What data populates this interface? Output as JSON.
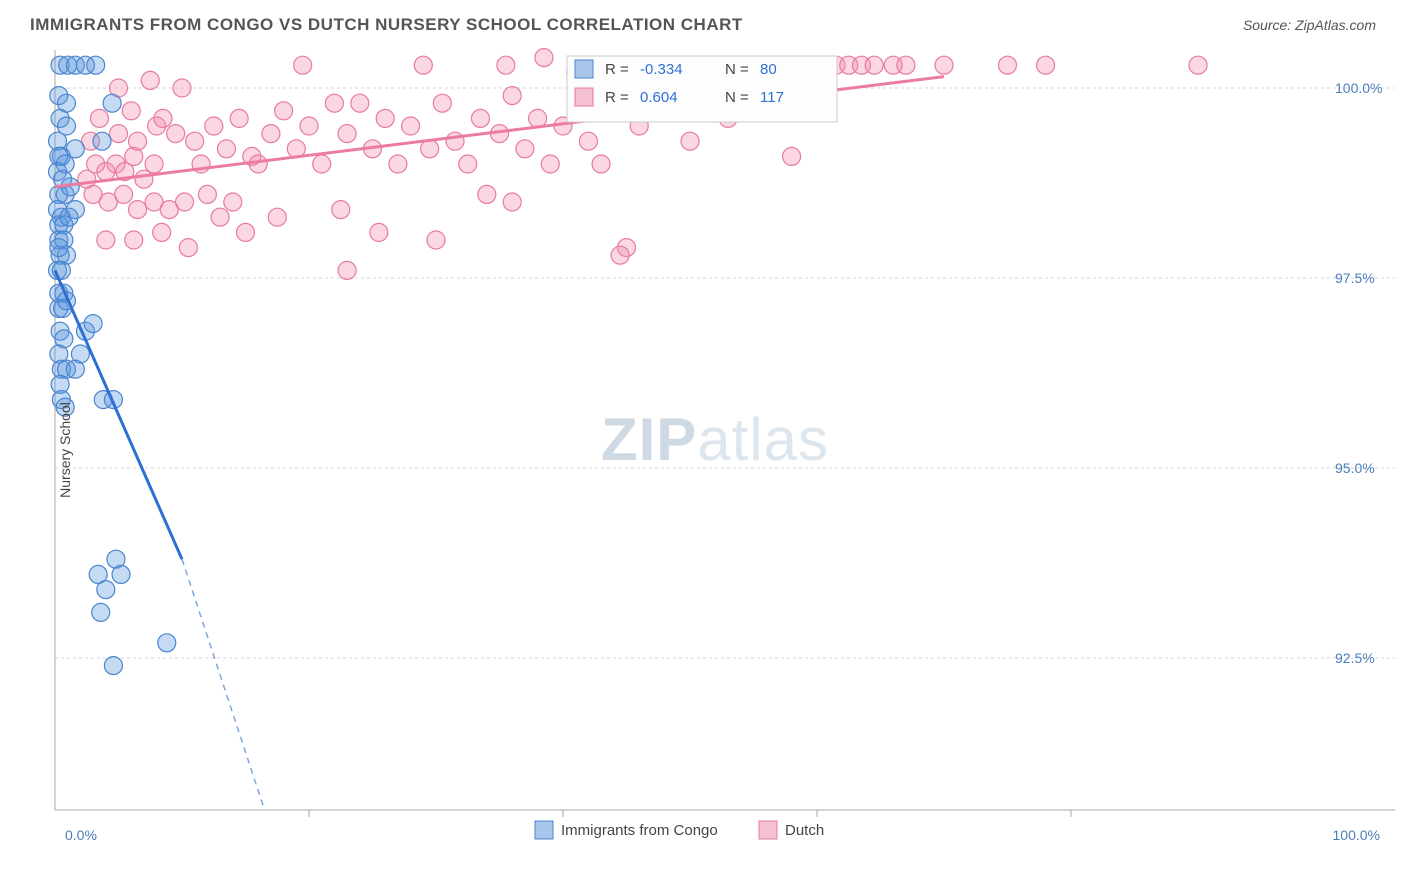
{
  "title": "IMMIGRANTS FROM CONGO VS DUTCH NURSERY SCHOOL CORRELATION CHART",
  "source": "Source: ZipAtlas.com",
  "ylabel": "Nursery School",
  "type": "scatter",
  "xlim": [
    0,
    100
  ],
  "ylim": [
    90.5,
    100.5
  ],
  "xticks": [
    0,
    100
  ],
  "xtick_labels": [
    "0.0%",
    "100.0%"
  ],
  "xtick_minor": [
    20,
    40,
    60,
    80
  ],
  "yticks": [
    92.5,
    95.0,
    97.5,
    100.0
  ],
  "ytick_labels": [
    "92.5%",
    "95.0%",
    "97.5%",
    "100.0%"
  ],
  "background_color": "#ffffff",
  "grid_color": "#d5d5d5",
  "marker_radius": 9,
  "watermark": {
    "bold": "ZIP",
    "rest": "atlas"
  },
  "legend": {
    "items": [
      {
        "label": "Immigrants from Congo",
        "fill": "#a9c5ea",
        "stroke": "#4a85d0"
      },
      {
        "label": "Dutch",
        "fill": "#f5c0d0",
        "stroke": "#e77aa0"
      }
    ]
  },
  "stats": [
    {
      "swatch_fill": "#a9c5ea",
      "swatch_stroke": "#4a85d0",
      "r_label": "R =",
      "r_value": "-0.334",
      "n_label": "N =",
      "n_value": "80"
    },
    {
      "swatch_fill": "#f5c0d0",
      "swatch_stroke": "#e77aa0",
      "r_label": "R =",
      "r_value": "0.604",
      "n_label": "N =",
      "n_value": "117"
    }
  ],
  "series": {
    "blue": {
      "color_fill": "rgba(90,150,220,0.35)",
      "color_stroke": "#4a85d0",
      "trend": {
        "x1": 0,
        "y1": 97.6,
        "x2_solid": 10,
        "y2_solid": 93.8,
        "x2_dash": 16.5,
        "y2_dash": 90.5
      },
      "points": [
        [
          0.4,
          100.3
        ],
        [
          1.0,
          100.3
        ],
        [
          1.6,
          100.3
        ],
        [
          2.4,
          100.3
        ],
        [
          3.2,
          100.3
        ],
        [
          0.3,
          99.9
        ],
        [
          0.9,
          99.8
        ],
        [
          0.4,
          99.6
        ],
        [
          0.9,
          99.5
        ],
        [
          0.2,
          99.3
        ],
        [
          0.5,
          99.1
        ],
        [
          0.3,
          99.1
        ],
        [
          0.8,
          99.0
        ],
        [
          1.6,
          99.2
        ],
        [
          3.7,
          99.3
        ],
        [
          4.5,
          99.8
        ],
        [
          0.2,
          98.9
        ],
        [
          0.6,
          98.8
        ],
        [
          0.3,
          98.6
        ],
        [
          0.8,
          98.6
        ],
        [
          1.2,
          98.7
        ],
        [
          0.2,
          98.4
        ],
        [
          0.5,
          98.3
        ],
        [
          0.3,
          98.2
        ],
        [
          0.7,
          98.2
        ],
        [
          1.1,
          98.3
        ],
        [
          1.6,
          98.4
        ],
        [
          0.3,
          98.0
        ],
        [
          0.7,
          98.0
        ],
        [
          0.4,
          97.8
        ],
        [
          0.9,
          97.8
        ],
        [
          0.3,
          97.9
        ],
        [
          0.2,
          97.6
        ],
        [
          0.5,
          97.6
        ],
        [
          0.3,
          97.3
        ],
        [
          0.7,
          97.3
        ],
        [
          0.3,
          97.1
        ],
        [
          0.6,
          97.1
        ],
        [
          0.9,
          97.2
        ],
        [
          0.4,
          96.8
        ],
        [
          0.7,
          96.7
        ],
        [
          0.3,
          96.5
        ],
        [
          0.5,
          96.3
        ],
        [
          0.9,
          96.3
        ],
        [
          0.4,
          96.1
        ],
        [
          0.5,
          95.9
        ],
        [
          0.8,
          95.8
        ],
        [
          1.6,
          96.3
        ],
        [
          2.0,
          96.5
        ],
        [
          2.4,
          96.8
        ],
        [
          3.0,
          96.9
        ],
        [
          3.8,
          95.9
        ],
        [
          4.6,
          95.9
        ],
        [
          4.8,
          93.8
        ],
        [
          5.2,
          93.6
        ],
        [
          3.4,
          93.6
        ],
        [
          4.0,
          93.4
        ],
        [
          3.6,
          93.1
        ],
        [
          8.8,
          92.7
        ],
        [
          4.6,
          92.4
        ]
      ]
    },
    "pink": {
      "color_fill": "rgba(240,140,170,0.35)",
      "color_stroke": "#e77aa0",
      "trend": {
        "x1": 0,
        "y1": 98.7,
        "x2": 70,
        "y2": 100.15
      },
      "points": [
        [
          2.5,
          98.8
        ],
        [
          3.2,
          99.0
        ],
        [
          4.0,
          98.9
        ],
        [
          4.8,
          99.0
        ],
        [
          5.5,
          98.9
        ],
        [
          6.2,
          99.1
        ],
        [
          7.0,
          98.8
        ],
        [
          7.8,
          99.0
        ],
        [
          3.0,
          98.6
        ],
        [
          4.2,
          98.5
        ],
        [
          5.4,
          98.6
        ],
        [
          6.5,
          98.4
        ],
        [
          7.8,
          98.5
        ],
        [
          9.0,
          98.4
        ],
        [
          10.2,
          98.5
        ],
        [
          2.8,
          99.3
        ],
        [
          5.0,
          99.4
        ],
        [
          6.5,
          99.3
        ],
        [
          8.0,
          99.5
        ],
        [
          9.5,
          99.4
        ],
        [
          11.0,
          99.3
        ],
        [
          3.5,
          99.6
        ],
        [
          6.0,
          99.7
        ],
        [
          8.5,
          99.6
        ],
        [
          5.0,
          100.0
        ],
        [
          7.5,
          100.1
        ],
        [
          10.0,
          100.0
        ],
        [
          4.0,
          98.0
        ],
        [
          6.2,
          98.0
        ],
        [
          8.4,
          98.1
        ],
        [
          10.5,
          97.9
        ],
        [
          13.0,
          98.3
        ],
        [
          11.5,
          99.0
        ],
        [
          12.5,
          99.5
        ],
        [
          13.5,
          99.2
        ],
        [
          14.5,
          99.6
        ],
        [
          15.5,
          99.1
        ],
        [
          12.0,
          98.6
        ],
        [
          14.0,
          98.5
        ],
        [
          16.0,
          99.0
        ],
        [
          17.0,
          99.4
        ],
        [
          18.0,
          99.7
        ],
        [
          15.0,
          98.1
        ],
        [
          17.5,
          98.3
        ],
        [
          19.0,
          99.2
        ],
        [
          20.0,
          99.5
        ],
        [
          21.0,
          99.0
        ],
        [
          19.5,
          100.3
        ],
        [
          22.0,
          99.8
        ],
        [
          23.0,
          99.4
        ],
        [
          24.0,
          99.8
        ],
        [
          25.0,
          99.2
        ],
        [
          26.0,
          99.6
        ],
        [
          22.5,
          98.4
        ],
        [
          25.5,
          98.1
        ],
        [
          23.0,
          97.6
        ],
        [
          27.0,
          99.0
        ],
        [
          28.0,
          99.5
        ],
        [
          29.5,
          99.2
        ],
        [
          29.0,
          100.3
        ],
        [
          30.5,
          99.8
        ],
        [
          31.5,
          99.3
        ],
        [
          32.5,
          99.0
        ],
        [
          33.5,
          99.6
        ],
        [
          30.0,
          98.0
        ],
        [
          34.0,
          98.6
        ],
        [
          35.0,
          99.4
        ],
        [
          36.0,
          99.9
        ],
        [
          37.0,
          99.2
        ],
        [
          36.0,
          98.5
        ],
        [
          35.5,
          100.3
        ],
        [
          38.0,
          99.6
        ],
        [
          39.0,
          99.0
        ],
        [
          40.0,
          99.5
        ],
        [
          41.0,
          100.2
        ],
        [
          42.0,
          99.3
        ],
        [
          38.5,
          100.4
        ],
        [
          44.0,
          99.8
        ],
        [
          45.0,
          97.9
        ],
        [
          43.0,
          99.0
        ],
        [
          46.0,
          99.5
        ],
        [
          47.0,
          100.3
        ],
        [
          48.5,
          99.7
        ],
        [
          50.0,
          99.3
        ],
        [
          52.0,
          100.3
        ],
        [
          53.0,
          99.6
        ],
        [
          55.0,
          100.3
        ],
        [
          56.0,
          99.8
        ],
        [
          57.0,
          100.3
        ],
        [
          58.5,
          100.3
        ],
        [
          58.0,
          99.1
        ],
        [
          60.0,
          99.7
        ],
        [
          60.5,
          100.3
        ],
        [
          61.5,
          100.3
        ],
        [
          62.5,
          100.3
        ],
        [
          63.5,
          100.3
        ],
        [
          64.5,
          100.3
        ],
        [
          66.0,
          100.3
        ],
        [
          67.0,
          100.3
        ],
        [
          70.0,
          100.3
        ],
        [
          75.0,
          100.3
        ],
        [
          78.0,
          100.3
        ],
        [
          90.0,
          100.3
        ],
        [
          44.5,
          97.8
        ]
      ]
    }
  }
}
